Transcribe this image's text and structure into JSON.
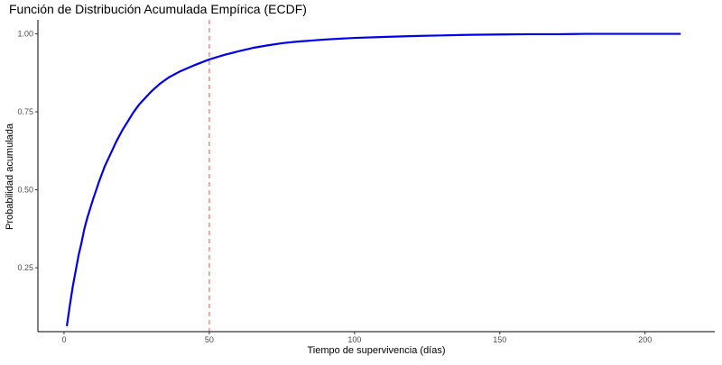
{
  "chart_data": {
    "type": "line",
    "title": "Función de Distribución Acumulada Empírica (ECDF)",
    "xlabel": "Tiempo de supervivencia (días)",
    "ylabel": "Probabilidad acumulada",
    "xlim": [
      -9,
      224
    ],
    "ylim": [
      0.045,
      1.045
    ],
    "x_ticks": [
      0,
      50,
      100,
      150,
      200
    ],
    "y_ticks": [
      0.25,
      0.5,
      0.75,
      1.0
    ],
    "x_tick_labels": [
      "0",
      "50",
      "100",
      "150",
      "200"
    ],
    "y_tick_labels": [
      "0.25",
      "0.50",
      "0.75",
      "1.00"
    ],
    "grid": false,
    "series": [
      {
        "color": "#0000ee",
        "x": [
          1,
          2,
          3,
          4,
          5,
          6,
          7,
          8,
          10,
          12,
          14,
          16,
          18,
          20,
          22,
          24,
          26,
          28,
          30,
          33,
          36,
          40,
          45,
          50,
          55,
          60,
          65,
          70,
          75,
          80,
          90,
          100,
          110,
          120,
          130,
          140,
          150,
          160,
          170,
          180,
          190,
          200,
          212
        ],
        "y": [
          0.065,
          0.13,
          0.19,
          0.24,
          0.29,
          0.33,
          0.375,
          0.41,
          0.47,
          0.525,
          0.575,
          0.615,
          0.655,
          0.69,
          0.72,
          0.75,
          0.775,
          0.795,
          0.815,
          0.84,
          0.86,
          0.88,
          0.9,
          0.918,
          0.932,
          0.944,
          0.955,
          0.963,
          0.97,
          0.975,
          0.982,
          0.987,
          0.99,
          0.993,
          0.995,
          0.997,
          0.998,
          0.999,
          0.999,
          1.0,
          1.0,
          1.0,
          1.0
        ]
      }
    ],
    "reference_lines": [
      {
        "orientation": "vertical",
        "x": 50,
        "color": "#f8766d",
        "style": "dashed"
      }
    ]
  }
}
